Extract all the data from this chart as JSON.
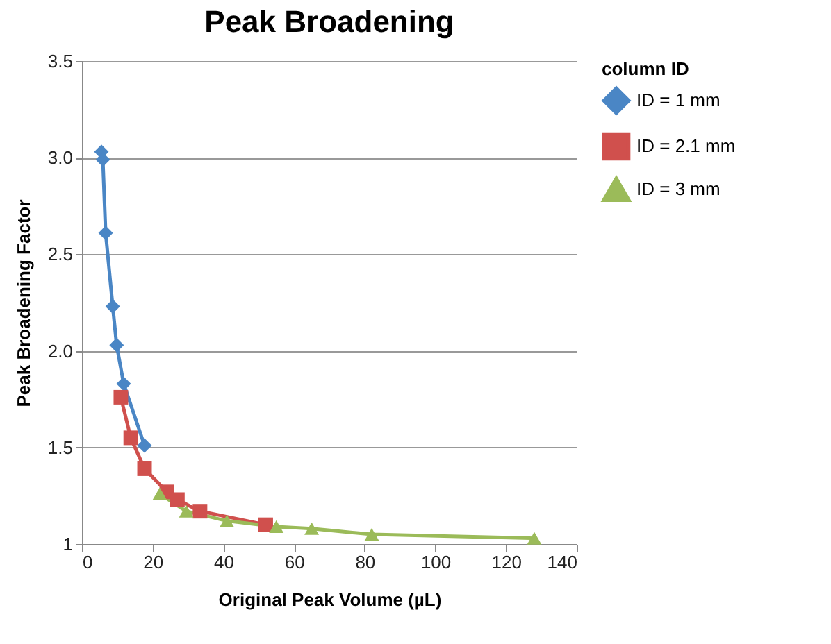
{
  "chart_data": {
    "type": "line",
    "title": "Peak Broadening",
    "xlabel": "Original Peak Volume (µL)",
    "ylabel": "Peak Broadening Factor",
    "legend_title": "column ID",
    "legend": "right",
    "grid": "y",
    "xlim": [
      0,
      140
    ],
    "xticks": [
      0,
      20,
      40,
      60,
      80,
      100,
      120,
      140
    ],
    "ylim": [
      1,
      3.5
    ],
    "yticks": [
      1,
      1.5,
      {
        "value": 2,
        "label": "2.0"
      },
      2.5,
      {
        "value": 3,
        "label": "3.0"
      },
      3.5
    ],
    "series": [
      {
        "name": "ID = 1 mm",
        "color": "#4a86c5",
        "marker": "diamond",
        "x": [
          5.5,
          5.9,
          6.7,
          8.7,
          9.8,
          11.8,
          17.7
        ],
        "values": [
          3.03,
          2.99,
          2.61,
          2.23,
          2.03,
          1.83,
          1.51
        ]
      },
      {
        "name": "ID = 2.1 mm",
        "color": "#d0504d",
        "marker": "square",
        "x": [
          11,
          13.8,
          17.7,
          24,
          27,
          33.4,
          52
        ],
        "values": [
          1.76,
          1.55,
          1.39,
          1.27,
          1.23,
          1.17,
          1.1
        ]
      },
      {
        "name": "ID = 3 mm",
        "color": "#9bbb59",
        "marker": "triangle",
        "x": [
          22,
          29.5,
          41,
          55,
          65,
          82,
          128
        ],
        "values": [
          1.26,
          1.17,
          1.12,
          1.09,
          1.08,
          1.05,
          1.03
        ]
      }
    ]
  }
}
